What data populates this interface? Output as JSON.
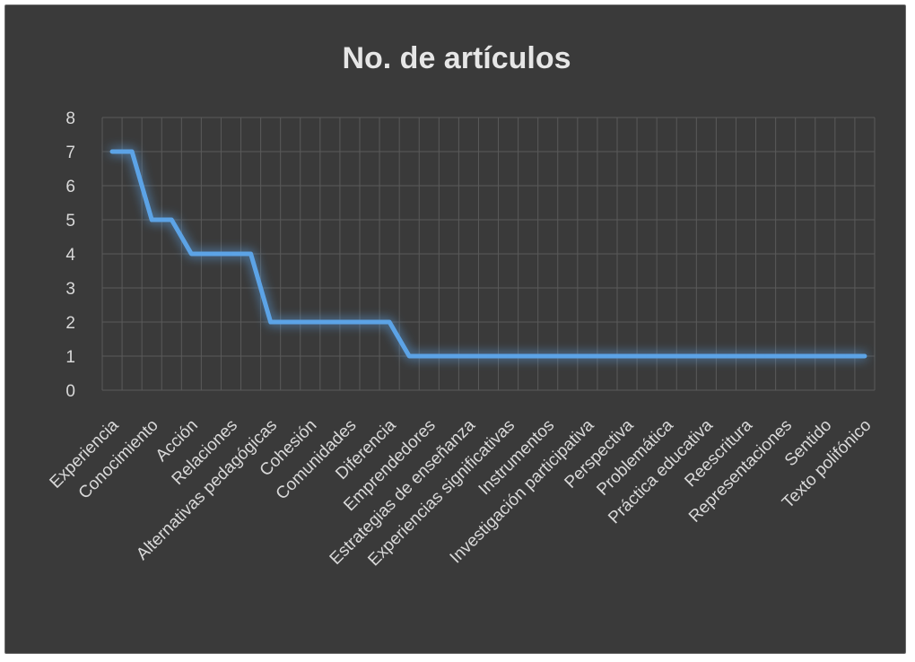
{
  "chart_data": {
    "type": "line",
    "title": "No. de artículos",
    "xlabel": "",
    "ylabel": "",
    "ylim": [
      0,
      8
    ],
    "yticks": [
      0,
      1,
      2,
      3,
      4,
      5,
      6,
      7,
      8
    ],
    "grid": true,
    "legend": "none",
    "colors": {
      "line": "#5ba3e6",
      "background": "#3a3a3a",
      "grid": "#5a5a5a",
      "text": "#d9d9d9"
    },
    "categories": [
      "Experiencia",
      "",
      "Conocimiento",
      "",
      "Acción",
      "",
      "Relaciones",
      "",
      "Alternativas pedagógicas",
      "",
      "Cohesión",
      "",
      "Comunidades",
      "",
      "Diferencia",
      "",
      "Emprendedores",
      "",
      "Estrategias de enseñanza",
      "",
      "Experiencias significativas",
      "",
      "Instrumentos",
      "",
      "Investigación participativa",
      "",
      "Perspectiva",
      "",
      "Problemática",
      "",
      "Práctica educativa",
      "",
      "Reescritura",
      "",
      "Representaciones",
      "",
      "Sentido",
      "",
      "Texto polifónico"
    ],
    "series": [
      {
        "values": [
          7,
          7,
          5,
          5,
          4,
          4,
          4,
          4,
          2,
          2,
          2,
          2,
          2,
          2,
          2,
          1,
          1,
          1,
          1,
          1,
          1,
          1,
          1,
          1,
          1,
          1,
          1,
          1,
          1,
          1,
          1,
          1,
          1,
          1,
          1,
          1,
          1,
          1,
          1
        ]
      }
    ]
  }
}
